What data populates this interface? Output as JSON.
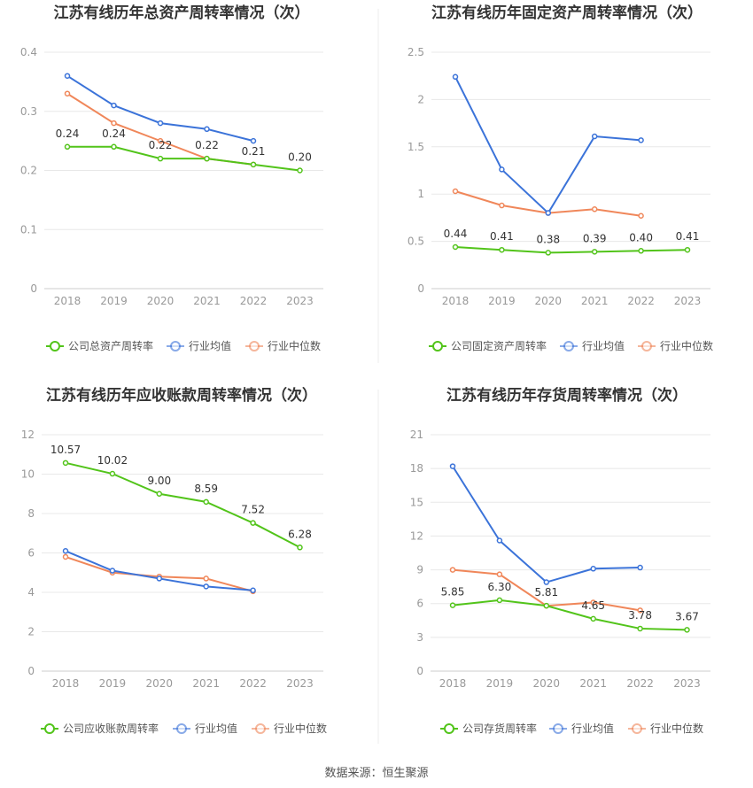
{
  "source": "数据来源：恒生聚源",
  "chart_data": [
    {
      "type": "line",
      "title": "江苏有线历年总资产周转率情况（次）",
      "categories": [
        "2018",
        "2019",
        "2020",
        "2021",
        "2022",
        "2023"
      ],
      "ylim": [
        0,
        0.4
      ],
      "yticks": [
        0,
        0.1,
        0.2,
        0.3,
        0.4
      ],
      "ytick_labels": [
        "0",
        "0.1",
        "0.2",
        "0.3",
        "0.4"
      ],
      "grid": true,
      "legend_position": "bottom",
      "series": [
        {
          "name": "公司总资产周转率",
          "color": "#52c41a",
          "values": [
            0.24,
            0.24,
            0.22,
            0.22,
            0.21,
            0.2
          ],
          "labels": [
            "0.24",
            "0.24",
            "0.22",
            "0.22",
            "0.21",
            "0.20"
          ]
        },
        {
          "name": "行业均值",
          "color": "#3b73d9",
          "values": [
            0.36,
            0.31,
            0.28,
            0.27,
            0.25,
            null
          ]
        },
        {
          "name": "行业中位数",
          "color": "#f0875a",
          "values": [
            0.33,
            0.28,
            0.25,
            0.22,
            0.21,
            null
          ]
        }
      ]
    },
    {
      "type": "line",
      "title": "江苏有线历年固定资产周转率情况（次）",
      "categories": [
        "2018",
        "2019",
        "2020",
        "2021",
        "2022",
        "2023"
      ],
      "ylim": [
        0,
        2.5
      ],
      "yticks": [
        0,
        0.5,
        1,
        1.5,
        2,
        2.5
      ],
      "ytick_labels": [
        "0",
        "0.5",
        "1",
        "1.5",
        "2",
        "2.5"
      ],
      "grid": true,
      "legend_position": "bottom",
      "series": [
        {
          "name": "公司固定资产周转率",
          "color": "#52c41a",
          "values": [
            0.44,
            0.41,
            0.38,
            0.39,
            0.4,
            0.41
          ],
          "labels": [
            "0.44",
            "0.41",
            "0.38",
            "0.39",
            "0.40",
            "0.41"
          ]
        },
        {
          "name": "行业均值",
          "color": "#3b73d9",
          "values": [
            2.24,
            1.26,
            0.8,
            1.61,
            1.57,
            null
          ]
        },
        {
          "name": "行业中位数",
          "color": "#f0875a",
          "values": [
            1.03,
            0.88,
            0.8,
            0.84,
            0.77,
            null
          ]
        }
      ]
    },
    {
      "type": "line",
      "title": "江苏有线历年应收账款周转率情况（次）",
      "categories": [
        "2018",
        "2019",
        "2020",
        "2021",
        "2022",
        "2023"
      ],
      "ylim": [
        0,
        12
      ],
      "yticks": [
        0,
        2,
        4,
        6,
        8,
        10,
        12
      ],
      "ytick_labels": [
        "0",
        "2",
        "4",
        "6",
        "8",
        "10",
        "12"
      ],
      "grid": true,
      "legend_position": "bottom",
      "series": [
        {
          "name": "公司应收账款周转率",
          "color": "#52c41a",
          "values": [
            10.57,
            10.02,
            9.0,
            8.59,
            7.52,
            6.28
          ],
          "labels": [
            "10.57",
            "10.02",
            "9.00",
            "8.59",
            "7.52",
            "6.28"
          ]
        },
        {
          "name": "行业均值",
          "color": "#3b73d9",
          "values": [
            6.1,
            5.1,
            4.7,
            4.3,
            4.1,
            null
          ]
        },
        {
          "name": "行业中位数",
          "color": "#f0875a",
          "values": [
            5.8,
            5.0,
            4.8,
            4.7,
            4.05,
            null
          ]
        }
      ]
    },
    {
      "type": "line",
      "title": "江苏有线历年存货周转率情况（次）",
      "categories": [
        "2018",
        "2019",
        "2020",
        "2021",
        "2022",
        "2023"
      ],
      "ylim": [
        0,
        21
      ],
      "yticks": [
        0,
        3,
        6,
        9,
        12,
        15,
        18,
        21
      ],
      "ytick_labels": [
        "0",
        "3",
        "6",
        "9",
        "12",
        "15",
        "18",
        "21"
      ],
      "grid": true,
      "legend_position": "bottom",
      "series": [
        {
          "name": "公司存货周转率",
          "color": "#52c41a",
          "values": [
            5.85,
            6.3,
            5.81,
            4.65,
            3.78,
            3.67
          ],
          "labels": [
            "5.85",
            "6.30",
            "5.81",
            "4.65",
            "3.78",
            "3.67"
          ]
        },
        {
          "name": "行业均值",
          "color": "#3b73d9",
          "values": [
            18.2,
            11.6,
            7.9,
            9.1,
            9.2,
            null
          ]
        },
        {
          "name": "行业中位数",
          "color": "#f0875a",
          "values": [
            9.0,
            8.6,
            5.8,
            6.1,
            5.4,
            null
          ]
        }
      ]
    }
  ]
}
